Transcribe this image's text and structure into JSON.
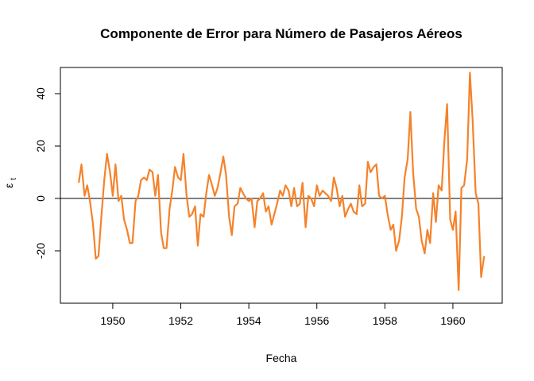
{
  "chart_data": {
    "type": "line",
    "title": "Componente de Error para Número de Pasajeros Aéreos",
    "x_label": "Fecha",
    "y_label": {
      "symbol": "ε",
      "subscript": "t"
    },
    "x": [
      1949,
      1949.08,
      1949.17,
      1949.25,
      1949.33,
      1949.42,
      1949.5,
      1949.58,
      1949.67,
      1949.75,
      1949.83,
      1949.92,
      1950,
      1950.08,
      1950.17,
      1950.25,
      1950.33,
      1950.42,
      1950.5,
      1950.58,
      1950.67,
      1950.75,
      1950.83,
      1950.92,
      1951,
      1951.08,
      1951.17,
      1951.25,
      1951.33,
      1951.42,
      1951.5,
      1951.58,
      1951.67,
      1951.75,
      1951.83,
      1951.92,
      1952,
      1952.08,
      1952.17,
      1952.25,
      1952.33,
      1952.42,
      1952.5,
      1952.58,
      1952.67,
      1952.75,
      1952.83,
      1952.92,
      1953,
      1953.08,
      1953.17,
      1953.25,
      1953.33,
      1953.42,
      1953.5,
      1953.58,
      1953.67,
      1953.75,
      1953.83,
      1953.92,
      1954,
      1954.08,
      1954.17,
      1954.25,
      1954.33,
      1954.42,
      1954.5,
      1954.58,
      1954.67,
      1954.75,
      1954.83,
      1954.92,
      1955,
      1955.08,
      1955.17,
      1955.25,
      1955.33,
      1955.42,
      1955.5,
      1955.58,
      1955.67,
      1955.75,
      1955.83,
      1955.92,
      1956,
      1956.08,
      1956.17,
      1956.25,
      1956.33,
      1956.42,
      1956.5,
      1956.58,
      1956.67,
      1956.75,
      1956.83,
      1956.92,
      1957,
      1957.08,
      1957.17,
      1957.25,
      1957.33,
      1957.42,
      1957.5,
      1957.58,
      1957.67,
      1957.75,
      1957.83,
      1957.92,
      1958,
      1958.08,
      1958.17,
      1958.25,
      1958.33,
      1958.42,
      1958.5,
      1958.58,
      1958.67,
      1958.75,
      1958.83,
      1958.92,
      1959,
      1959.08,
      1959.17,
      1959.25,
      1959.33,
      1959.42,
      1959.5,
      1959.58,
      1959.67,
      1959.75,
      1959.83,
      1959.92,
      1960,
      1960.08,
      1960.17,
      1960.25,
      1960.33,
      1960.42,
      1960.5,
      1960.58,
      1960.67,
      1960.75,
      1960.83,
      1960.92
    ],
    "series": [
      {
        "color": "#f5822a",
        "values": [
          6,
          13,
          1,
          5,
          -1,
          -10,
          -23,
          -22,
          -6,
          7,
          17,
          10,
          1,
          13,
          -1,
          1,
          -8,
          -12,
          -17,
          -17,
          -1,
          1,
          7,
          8,
          7,
          11,
          10,
          1,
          9,
          -13,
          -19,
          -19,
          -4,
          3,
          12,
          8,
          7,
          17,
          1,
          -7,
          -6,
          -3,
          -18,
          -6,
          -7,
          2,
          9,
          5,
          1,
          4,
          10,
          16,
          9,
          -7,
          -14,
          -3,
          -2,
          4,
          2,
          0,
          -1,
          0,
          -11,
          -1,
          0,
          2,
          -5,
          -3,
          -10,
          -6,
          -2,
          3,
          1,
          5,
          3,
          -3,
          4,
          -3,
          -2,
          6,
          -11,
          1,
          0,
          -3,
          5,
          1,
          3,
          2,
          1,
          -1,
          8,
          4,
          -3,
          1,
          -7,
          -4,
          -2,
          -5,
          -6,
          5,
          -3,
          -2,
          14,
          10,
          12,
          13,
          1,
          0,
          1,
          -6,
          -12,
          -10,
          -20,
          -16,
          -7,
          8,
          15,
          33,
          10,
          -4,
          -7,
          -16,
          -21,
          -12,
          -17,
          2,
          -9,
          5,
          3,
          22,
          36,
          -8,
          -12,
          -5,
          -35,
          4,
          5,
          15,
          48,
          30,
          2,
          -2,
          -30,
          -22
        ]
      }
    ],
    "xlim": [
      1948.46,
      1961.45
    ],
    "ylim": [
      -40,
      50
    ],
    "xticks": [
      1950,
      1952,
      1954,
      1956,
      1958,
      1960
    ],
    "yticks": [
      -20,
      0,
      20,
      40
    ],
    "reference_line": 0
  }
}
